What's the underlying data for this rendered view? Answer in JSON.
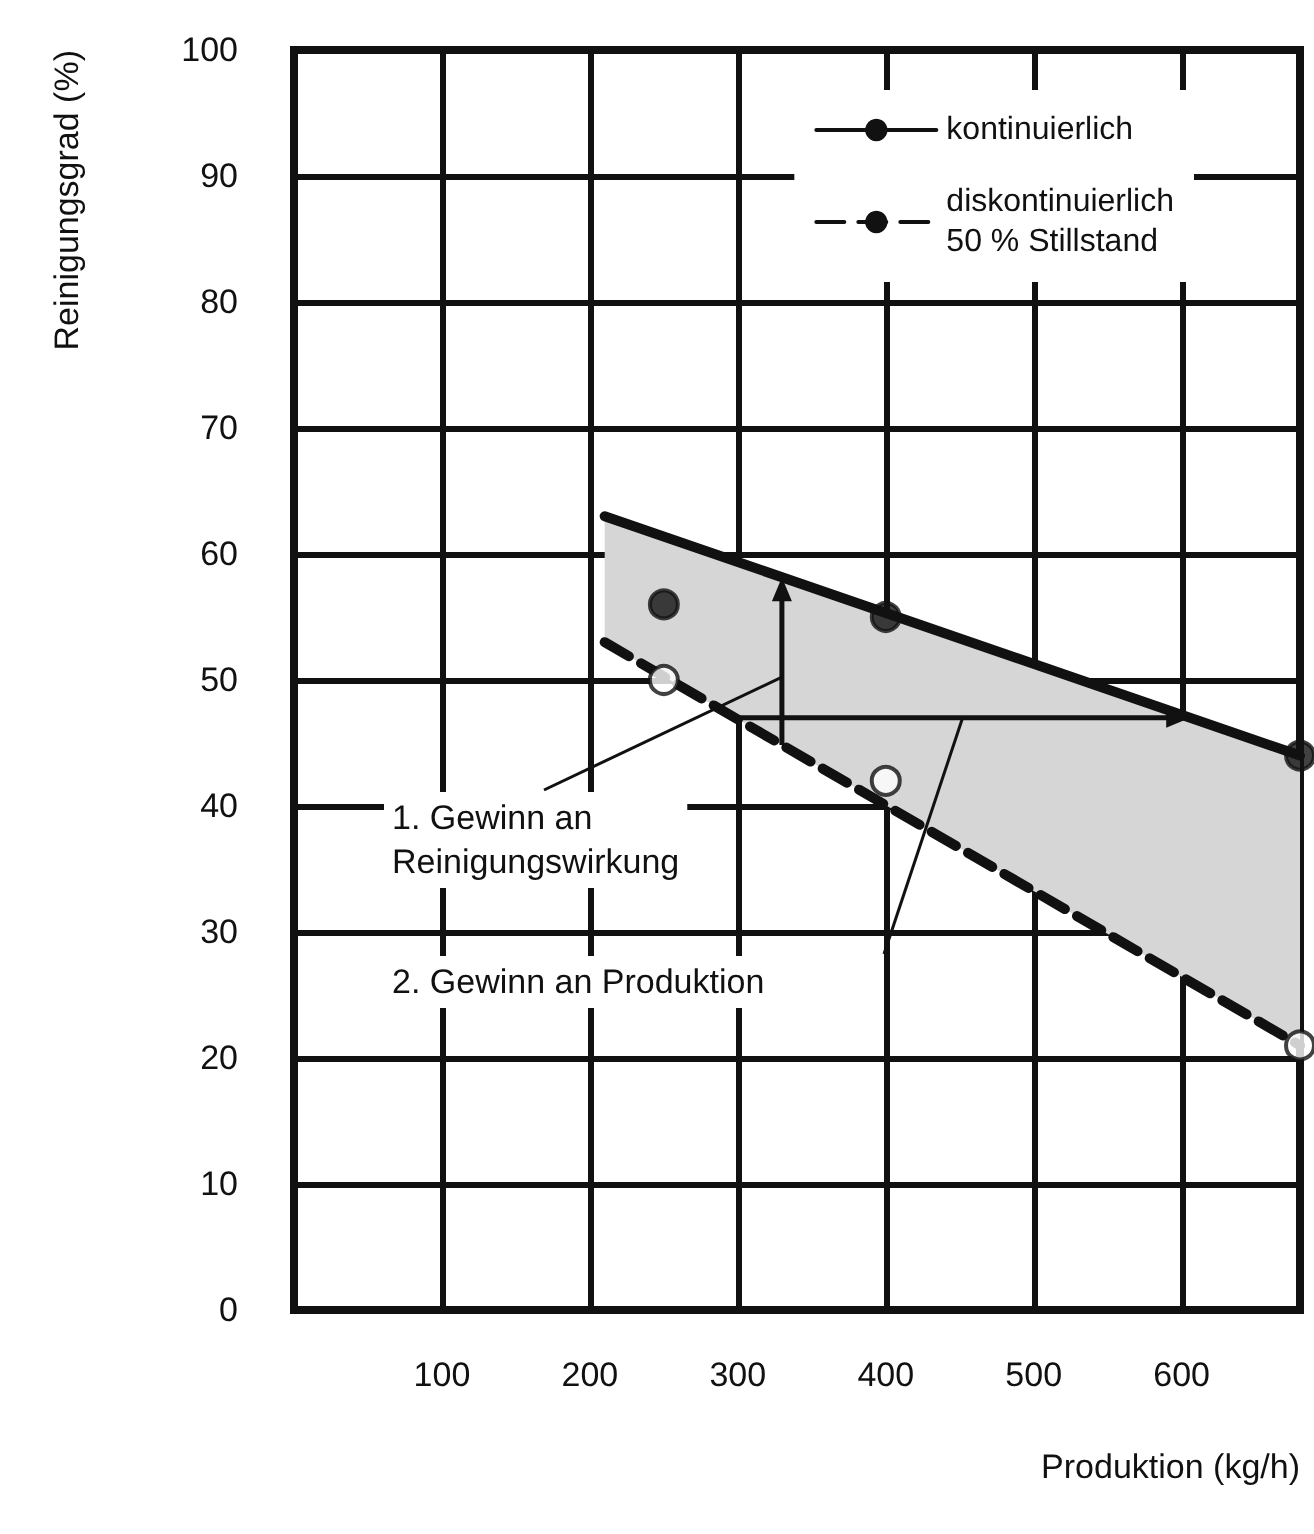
{
  "chart_data": {
    "type": "line",
    "xlabel": "Produktion (kg/h)",
    "ylabel": "Reinigungsgrad (%)",
    "xlim": [
      0,
      680
    ],
    "xticks": [
      100,
      200,
      300,
      400,
      500,
      600
    ],
    "ylim": [
      0,
      100
    ],
    "yticks": [
      0,
      10,
      20,
      30,
      40,
      50,
      60,
      70,
      80,
      90,
      100
    ],
    "grid": true,
    "legend": "top right",
    "series": [
      {
        "name": "kontinuierlich",
        "color": "#111111",
        "line_style": "solid",
        "marker": "none",
        "x": [
          210,
          680
        ],
        "values": [
          63,
          44
        ],
        "lower": [
          53,
          21
        ],
        "upper": [
          63,
          44
        ]
      },
      {
        "name": "diskontinuierlich\n50 % Stillstand",
        "color": "#111111",
        "line_style": "dashed",
        "marker": "none",
        "x": [
          210,
          680
        ],
        "values": [
          53,
          21
        ]
      },
      {
        "type": "scatter",
        "color": "#111111",
        "marker": "circle",
        "x": [
          250,
          400,
          680
        ],
        "values": [
          56,
          55,
          44
        ]
      },
      {
        "type": "scatter",
        "color": "#ffffff",
        "marker": "circle",
        "x": [
          250,
          400,
          680
        ],
        "values": [
          50,
          42,
          21
        ]
      }
    ],
    "annotations": [
      "1. Gewinn an\nReinigungswirkung",
      "2. Gewinn an Produktion"
    ]
  }
}
